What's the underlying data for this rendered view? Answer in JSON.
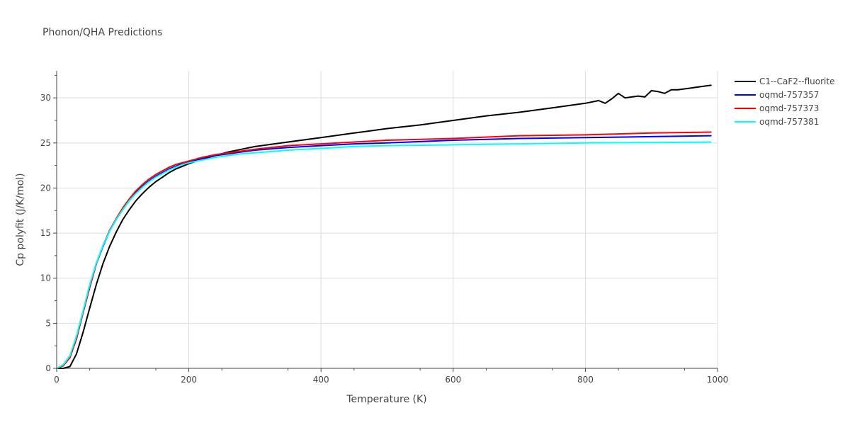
{
  "chart_data": {
    "type": "line",
    "title": "Phonon/QHA Predictions",
    "xlabel": "Temperature (K)",
    "ylabel": "Cp polyfit (J/K/mol)",
    "xlim": [
      0,
      1000
    ],
    "ylim": [
      0,
      33
    ],
    "xticks": [
      0,
      200,
      400,
      600,
      800,
      1000
    ],
    "yticks": [
      0,
      5,
      10,
      15,
      20,
      25,
      30
    ],
    "grid": true,
    "legend_position": "top-right",
    "series": [
      {
        "name": "C1--CaF2--fluorite",
        "color": "#000000",
        "x": [
          0,
          10,
          20,
          30,
          40,
          50,
          60,
          70,
          80,
          90,
          100,
          110,
          120,
          130,
          140,
          150,
          160,
          170,
          180,
          190,
          200,
          220,
          240,
          260,
          280,
          300,
          350,
          400,
          450,
          500,
          550,
          600,
          650,
          700,
          750,
          800,
          820,
          830,
          840,
          850,
          860,
          870,
          880,
          890,
          900,
          910,
          920,
          930,
          940,
          950,
          960,
          970,
          980,
          990
        ],
        "y": [
          0,
          0,
          0.2,
          1.6,
          4.0,
          6.7,
          9.3,
          11.6,
          13.5,
          15.1,
          16.5,
          17.6,
          18.6,
          19.4,
          20.1,
          20.7,
          21.2,
          21.7,
          22.1,
          22.4,
          22.7,
          23.2,
          23.6,
          24.0,
          24.3,
          24.6,
          25.1,
          25.6,
          26.1,
          26.6,
          27.0,
          27.5,
          28.0,
          28.4,
          28.9,
          29.4,
          29.7,
          29.4,
          29.9,
          30.5,
          30.0,
          30.1,
          30.2,
          30.1,
          30.8,
          30.7,
          30.5,
          30.9,
          30.9,
          31.0,
          31.1,
          31.2,
          31.3,
          31.4
        ]
      },
      {
        "name": "oqmd-757357",
        "color": "#0000ff",
        "x": [
          0,
          10,
          20,
          30,
          40,
          50,
          60,
          70,
          80,
          90,
          100,
          110,
          120,
          130,
          140,
          150,
          160,
          170,
          180,
          190,
          200,
          220,
          240,
          260,
          280,
          300,
          350,
          400,
          450,
          500,
          600,
          700,
          800,
          900,
          990
        ],
        "y": [
          0,
          0.3,
          1.2,
          3.3,
          6.2,
          9.0,
          11.6,
          13.5,
          15.2,
          16.5,
          17.6,
          18.6,
          19.5,
          20.2,
          20.8,
          21.3,
          21.7,
          22.1,
          22.4,
          22.7,
          22.9,
          23.3,
          23.6,
          23.8,
          24.0,
          24.2,
          24.5,
          24.7,
          24.9,
          25.0,
          25.3,
          25.5,
          25.6,
          25.7,
          25.8
        ]
      },
      {
        "name": "oqmd-757373",
        "color": "#ff0000",
        "x": [
          0,
          10,
          20,
          30,
          40,
          50,
          60,
          70,
          80,
          90,
          100,
          110,
          120,
          130,
          140,
          150,
          160,
          170,
          180,
          190,
          200,
          220,
          240,
          260,
          280,
          300,
          350,
          400,
          450,
          500,
          600,
          700,
          800,
          900,
          990
        ],
        "y": [
          0,
          0.3,
          1.2,
          3.3,
          6.2,
          9.0,
          11.6,
          13.6,
          15.3,
          16.6,
          17.8,
          18.8,
          19.7,
          20.4,
          21.0,
          21.5,
          21.9,
          22.3,
          22.6,
          22.8,
          23.0,
          23.4,
          23.7,
          23.9,
          24.1,
          24.3,
          24.7,
          24.9,
          25.1,
          25.3,
          25.5,
          25.8,
          25.9,
          26.1,
          26.2
        ]
      },
      {
        "name": "oqmd-757381",
        "color": "#00ffff",
        "x": [
          0,
          10,
          20,
          30,
          40,
          50,
          60,
          70,
          80,
          90,
          100,
          110,
          120,
          130,
          140,
          150,
          160,
          170,
          180,
          190,
          200,
          220,
          240,
          260,
          280,
          300,
          350,
          400,
          450,
          500,
          600,
          700,
          800,
          900,
          990
        ],
        "y": [
          0,
          0.4,
          1.4,
          3.6,
          6.4,
          9.3,
          11.7,
          13.6,
          15.2,
          16.5,
          17.6,
          18.6,
          19.4,
          20.1,
          20.7,
          21.2,
          21.6,
          22.0,
          22.3,
          22.6,
          22.8,
          23.1,
          23.4,
          23.6,
          23.8,
          23.9,
          24.2,
          24.4,
          24.6,
          24.7,
          24.8,
          24.9,
          25.0,
          25.05,
          25.1
        ]
      }
    ]
  }
}
